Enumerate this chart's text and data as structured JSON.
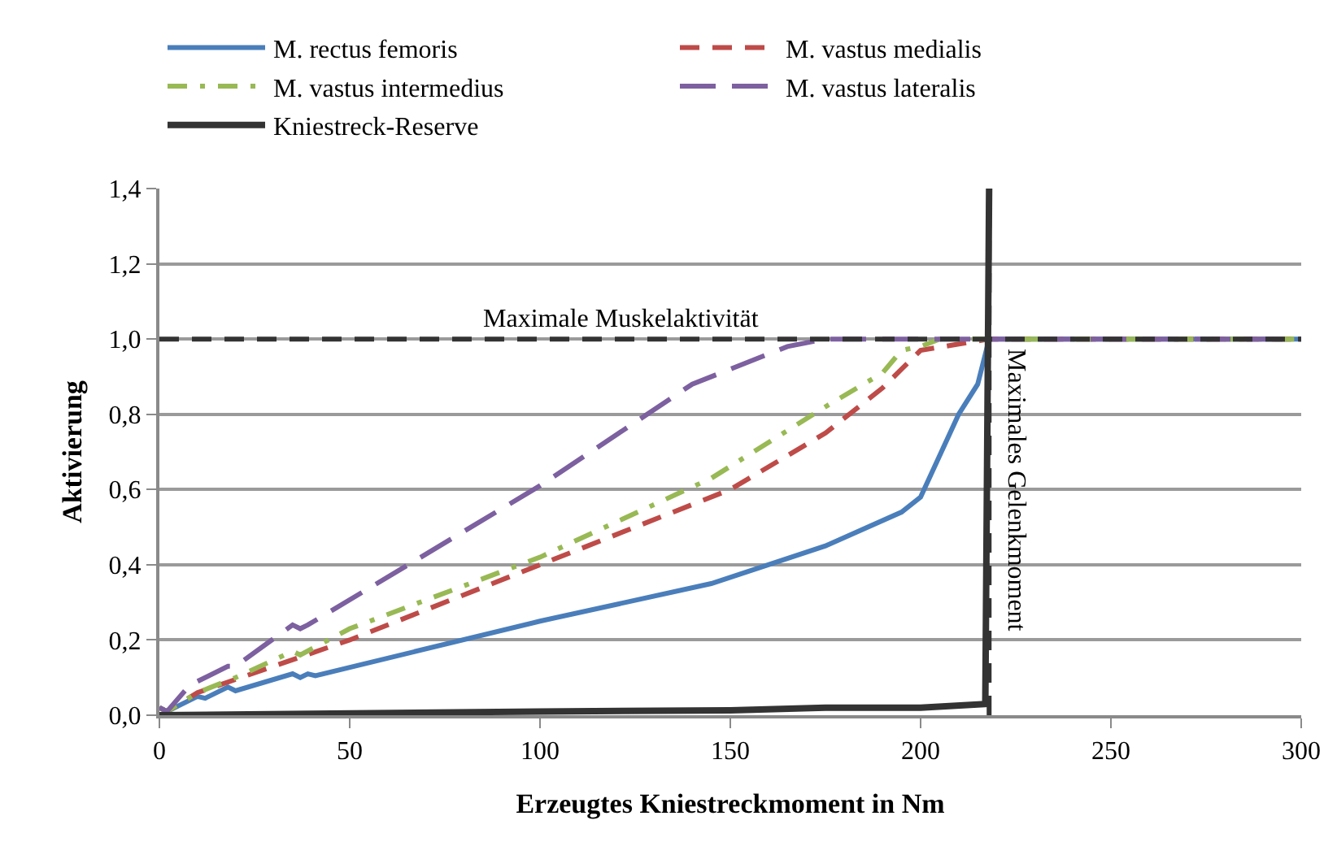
{
  "chart_data": {
    "type": "line",
    "xlabel": "Erzeugtes Kniestreckmoment in Nm",
    "ylabel": "Aktivierung",
    "xlim": [
      0,
      300
    ],
    "xticks": [
      0,
      50,
      100,
      150,
      200,
      250,
      300
    ],
    "ylim": [
      0,
      1.4
    ],
    "yticks": [
      {
        "value": 0,
        "label": "0,0"
      },
      {
        "value": 0.2,
        "label": "0,2"
      },
      {
        "value": 0.4,
        "label": "0,4"
      },
      {
        "value": 0.6,
        "label": "0,6"
      },
      {
        "value": 0.8,
        "label": "0,8"
      },
      {
        "value": 1,
        "label": "1,0"
      },
      {
        "value": 1.2,
        "label": "1,2"
      },
      {
        "value": 1.4,
        "label": "1,4"
      }
    ],
    "grid": "y",
    "legend": "top",
    "marker": "none",
    "series": [
      {
        "name": "M. rectus femoris",
        "color": "#4a7ebb",
        "line_style": "solid",
        "x": [
          0,
          2,
          10,
          12,
          18,
          20,
          35,
          37,
          39,
          41,
          100,
          145,
          175,
          195,
          200,
          210,
          215,
          218,
          300
        ],
        "values": [
          0.02,
          0.01,
          0.05,
          0.045,
          0.075,
          0.065,
          0.11,
          0.1,
          0.11,
          0.105,
          0.25,
          0.35,
          0.45,
          0.54,
          0.58,
          0.8,
          0.88,
          1.0,
          1.0
        ]
      },
      {
        "name": "M. vastus medialis",
        "color": "#be4b48",
        "line_style": "dashed",
        "x": [
          0,
          2,
          10,
          50,
          100,
          150,
          175,
          190,
          195,
          200,
          218,
          300
        ],
        "values": [
          0.02,
          0.01,
          0.06,
          0.2,
          0.4,
          0.6,
          0.75,
          0.87,
          0.92,
          0.97,
          1.0,
          1.0
        ]
      },
      {
        "name": "M. vastus intermedius",
        "color": "#98b954",
        "line_style": "dashdot",
        "x": [
          0,
          2,
          10,
          20,
          35,
          37,
          50,
          100,
          145,
          175,
          190,
          195,
          200,
          205,
          300
        ],
        "values": [
          0.02,
          0.01,
          0.06,
          0.1,
          0.17,
          0.16,
          0.23,
          0.42,
          0.63,
          0.82,
          0.91,
          0.97,
          0.98,
          1.0,
          1.0
        ]
      },
      {
        "name": "M. vastus lateralis",
        "color": "#7d60a0",
        "line_style": "longdash",
        "x": [
          0,
          2,
          8,
          18,
          20,
          35,
          37,
          39,
          100,
          140,
          165,
          175,
          300
        ],
        "values": [
          0.02,
          0.01,
          0.08,
          0.13,
          0.13,
          0.24,
          0.23,
          0.24,
          0.61,
          0.88,
          0.98,
          1.0,
          1.0
        ]
      },
      {
        "name": "Kniestreck-Reserve",
        "color": "#333333",
        "line_style": "solid",
        "x": [
          0,
          100,
          150,
          175,
          200,
          217,
          218
        ],
        "values": [
          0,
          0.01,
          0.013,
          0.02,
          0.02,
          0.03,
          1.4
        ]
      }
    ],
    "ref_lines": [
      {
        "axis": "y",
        "value": 1,
        "label": "Maximale Muskelaktivität",
        "color": "#333333",
        "line_style": "dashed"
      },
      {
        "axis": "x",
        "value": 218,
        "label": "Maximales Gelenkmoment",
        "color": "#333333",
        "line_style": "dashed"
      }
    ]
  }
}
